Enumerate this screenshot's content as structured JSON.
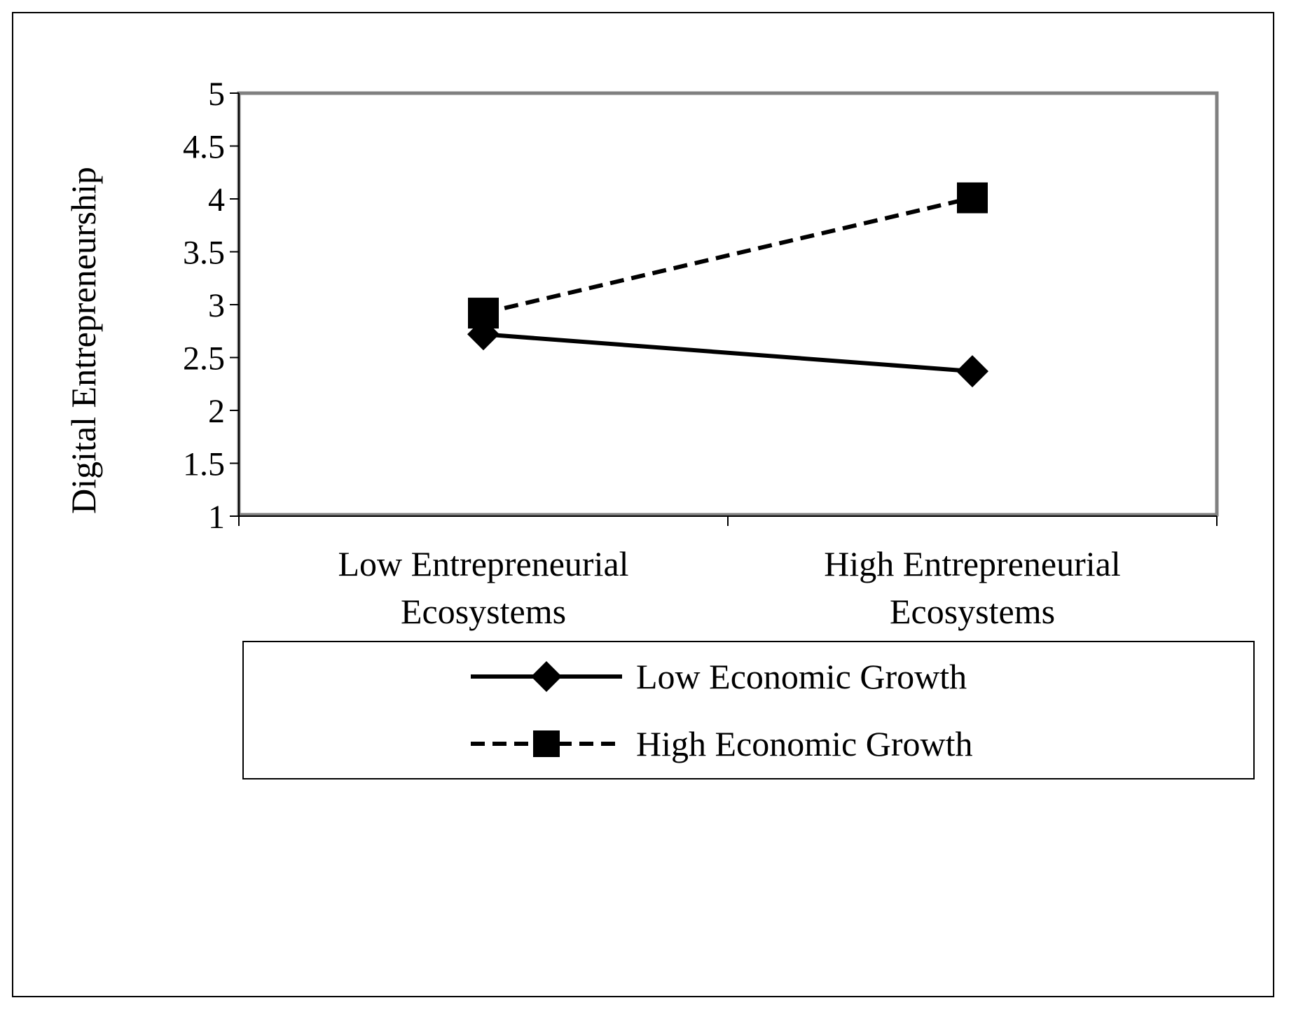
{
  "chart_data": {
    "type": "line",
    "categories": [
      [
        "Low Entrepreneurial",
        "Ecosystems"
      ],
      [
        "High Entrepreneurial",
        "Ecosystems"
      ]
    ],
    "series": [
      {
        "name": "Low Economic Growth",
        "values": [
          2.72,
          2.37
        ],
        "marker": "diamond-icon",
        "style": "solid"
      },
      {
        "name": "High Economic Growth",
        "values": [
          2.92,
          4.01
        ],
        "marker": "square-icon",
        "style": "dashed"
      }
    ],
    "ylabel": "Digital Entrepreneurship",
    "xlabel": "",
    "ylim": [
      1,
      5
    ],
    "yticks": [
      "1",
      "1.5",
      "2",
      "2.5",
      "3",
      "3.5",
      "4",
      "4.5",
      "5"
    ],
    "grid": false,
    "legend": "bottom",
    "colors": {
      "line": "#000000",
      "plot_border": "#808080"
    }
  }
}
